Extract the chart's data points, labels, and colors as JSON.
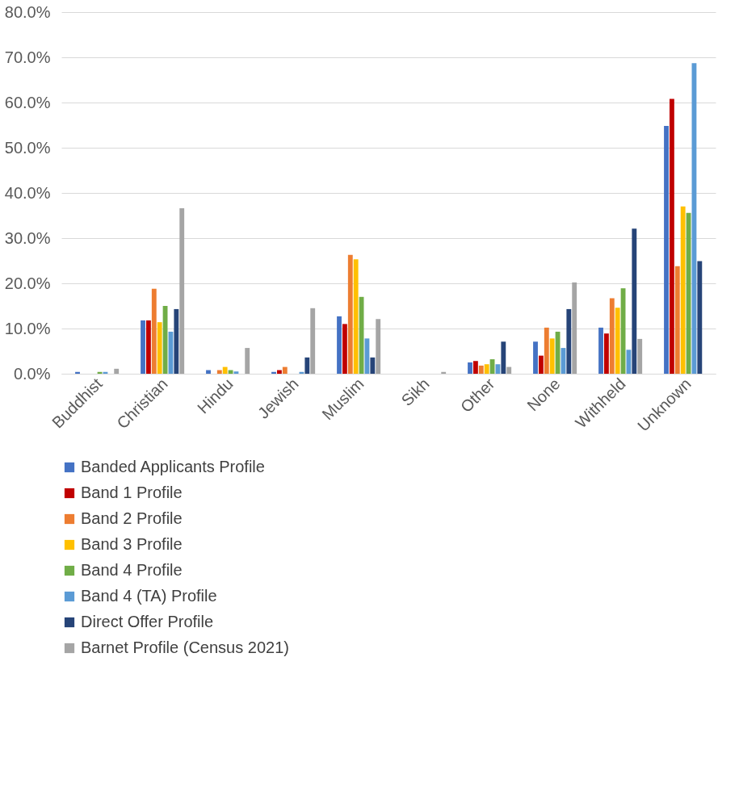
{
  "chart_data": {
    "type": "bar",
    "categories": [
      "Buddhist",
      "Christian",
      "Hindu",
      "Jewish",
      "Muslim",
      "Sikh",
      "Other",
      "None",
      "Withheld",
      "Unknown"
    ],
    "series": [
      {
        "name": "Banded Applicants Profile",
        "color": "#4472c4",
        "values": [
          0.4,
          11.8,
          0.8,
          0.4,
          12.7,
          0,
          2.5,
          7.1,
          10.2,
          54.8
        ]
      },
      {
        "name": "Band 1 Profile",
        "color": "#c00000",
        "values": [
          0,
          11.8,
          0,
          0.8,
          11.0,
          0,
          2.8,
          4.0,
          8.9,
          60.8
        ]
      },
      {
        "name": "Band 2 Profile",
        "color": "#ed7d31",
        "values": [
          0,
          18.8,
          0.8,
          1.5,
          26.3,
          0,
          1.8,
          10.2,
          16.7,
          23.8
        ]
      },
      {
        "name": "Band 3 Profile",
        "color": "#ffc000",
        "values": [
          0,
          11.4,
          1.5,
          0,
          25.3,
          0,
          2.1,
          7.8,
          14.6,
          37.0
        ]
      },
      {
        "name": "Band 4 Profile",
        "color": "#70ad47",
        "values": [
          0.4,
          15.0,
          0.8,
          0,
          17.0,
          0,
          3.2,
          9.3,
          18.9,
          35.6
        ]
      },
      {
        "name": "Band 4 (TA) Profile",
        "color": "#5b9bd5",
        "values": [
          0.4,
          9.3,
          0.5,
          0.4,
          7.8,
          0,
          2.1,
          5.7,
          5.3,
          68.7
        ]
      },
      {
        "name": "Direct Offer Profile",
        "color": "#264478",
        "values": [
          0,
          14.3,
          0,
          3.6,
          3.6,
          0,
          7.1,
          14.3,
          32.1,
          24.9
        ]
      },
      {
        "name": "Barnet Profile (Census 2021)",
        "color": "#a5a5a5",
        "values": [
          1.1,
          36.6,
          5.7,
          14.5,
          12.1,
          0.4,
          1.5,
          20.2,
          7.7,
          0
        ]
      }
    ],
    "ylim": [
      0,
      80
    ],
    "yticks": [
      {
        "value": 0,
        "label": "0.0%"
      },
      {
        "value": 10,
        "label": "10.0%"
      },
      {
        "value": 20,
        "label": "20.0%"
      },
      {
        "value": 30,
        "label": "30.0%"
      },
      {
        "value": 40,
        "label": "40.0%"
      },
      {
        "value": 50,
        "label": "50.0%"
      },
      {
        "value": 60,
        "label": "60.0%"
      },
      {
        "value": 70,
        "label": "70.0%"
      },
      {
        "value": 80,
        "label": "80.0%"
      }
    ],
    "grid": "y",
    "legend": "bottom"
  }
}
